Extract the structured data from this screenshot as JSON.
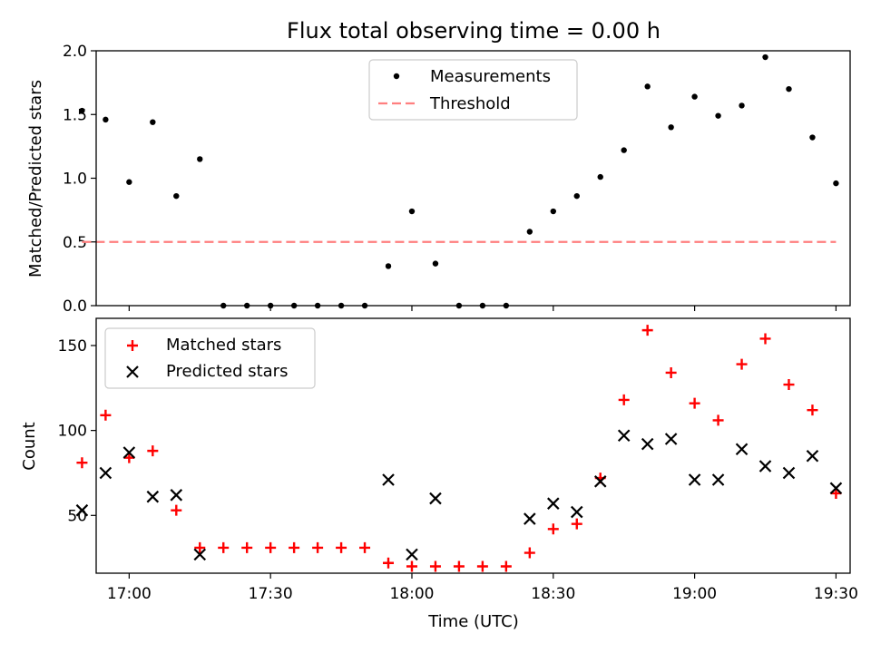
{
  "chart_data": [
    {
      "type": "scatter",
      "title": "Flux total observing time = 0.00 h",
      "xlabel": "",
      "ylabel": "Matched/Predicted stars",
      "xlim": [
        "16:53",
        "19:33"
      ],
      "ylim": [
        0,
        2.0
      ],
      "yticks": [
        0.0,
        0.5,
        1.0,
        1.5,
        2.0
      ],
      "ytick_labels": [
        "0.0",
        "0.5",
        "1.0",
        "1.5",
        "2.0"
      ],
      "xticks": [
        "17:00",
        "17:30",
        "18:00",
        "18:30",
        "19:00",
        "19:30"
      ],
      "xtick_labels_visible": false,
      "legend_position": "top-center",
      "series": [
        {
          "name": "Measurements",
          "marker": "dot",
          "color": "#000000",
          "x": [
            "16:50",
            "16:55",
            "17:00",
            "17:05",
            "17:10",
            "17:15",
            "17:20",
            "17:25",
            "17:30",
            "17:35",
            "17:40",
            "17:45",
            "17:50",
            "17:55",
            "18:00",
            "18:05",
            "18:10",
            "18:15",
            "18:20",
            "18:25",
            "18:30",
            "18:35",
            "18:40",
            "18:45",
            "18:50",
            "18:55",
            "19:00",
            "19:05",
            "19:10",
            "19:15",
            "19:20",
            "19:25",
            "19:30"
          ],
          "y": [
            1.53,
            1.46,
            0.97,
            1.44,
            0.86,
            1.15,
            0.0,
            0.0,
            0.0,
            0.0,
            0.0,
            0.0,
            0.0,
            0.31,
            0.74,
            0.33,
            0.0,
            0.0,
            0.0,
            0.58,
            0.74,
            0.86,
            1.01,
            1.22,
            1.72,
            1.4,
            1.64,
            1.49,
            1.57,
            1.95,
            1.7,
            1.32,
            0.96
          ]
        },
        {
          "name": "Threshold",
          "marker": "dashed-line",
          "color": "#ff7f7f",
          "x": [
            "16:50",
            "19:30"
          ],
          "y": [
            0.5,
            0.5
          ]
        }
      ]
    },
    {
      "type": "scatter",
      "title": "",
      "xlabel": "Time (UTC)",
      "ylabel": "Count",
      "xlim": [
        "16:53",
        "19:33"
      ],
      "ylim": [
        16,
        166
      ],
      "yticks": [
        50,
        100,
        150
      ],
      "ytick_labels": [
        "50",
        "100",
        "150"
      ],
      "xticks": [
        "17:00",
        "17:30",
        "18:00",
        "18:30",
        "19:00",
        "19:30"
      ],
      "xtick_labels": [
        "17:00",
        "17:30",
        "18:00",
        "18:30",
        "19:00",
        "19:30"
      ],
      "legend_position": "top-left",
      "series": [
        {
          "name": "Matched stars",
          "marker": "plus",
          "color": "#ff0000",
          "x": [
            "16:50",
            "16:55",
            "17:00",
            "17:05",
            "17:10",
            "17:15",
            "17:20",
            "17:25",
            "17:30",
            "17:35",
            "17:40",
            "17:45",
            "17:50",
            "17:55",
            "18:00",
            "18:05",
            "18:10",
            "18:15",
            "18:20",
            "18:25",
            "18:30",
            "18:35",
            "18:40",
            "18:45",
            "18:50",
            "18:55",
            "19:00",
            "19:05",
            "19:10",
            "19:15",
            "19:20",
            "19:25",
            "19:30"
          ],
          "y": [
            81,
            109,
            84,
            88,
            53,
            31,
            31,
            31,
            31,
            31,
            31,
            31,
            31,
            22,
            20,
            20,
            20,
            20,
            20,
            28,
            42,
            45,
            72,
            118,
            159,
            134,
            116,
            106,
            139,
            154,
            127,
            112,
            63
          ]
        },
        {
          "name": "Predicted stars",
          "marker": "x",
          "color": "#000000",
          "x": [
            "16:50",
            "16:55",
            "17:00",
            "17:05",
            "17:10",
            "17:15",
            "17:55",
            "18:00",
            "18:05",
            "18:25",
            "18:30",
            "18:35",
            "18:40",
            "18:45",
            "18:50",
            "18:55",
            "19:00",
            "19:05",
            "19:10",
            "19:15",
            "19:20",
            "19:25",
            "19:30"
          ],
          "y": [
            53,
            75,
            87,
            61,
            62,
            27,
            71,
            27,
            60,
            48,
            57,
            52,
            70,
            97,
            92,
            95,
            71,
            71,
            89,
            79,
            75,
            85,
            66
          ]
        }
      ]
    }
  ]
}
